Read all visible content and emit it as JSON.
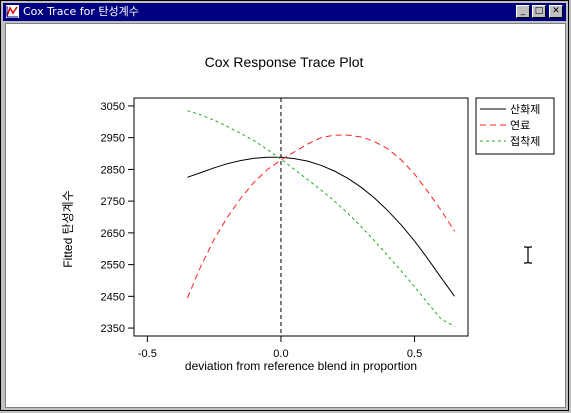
{
  "window": {
    "title": "Cox Trace for 탄성계수",
    "controls": {
      "minimize": "_",
      "maximize": "□",
      "close": "✕"
    },
    "icon": "app-icon"
  },
  "chart_data": {
    "type": "line",
    "title": "Cox Response Trace Plot",
    "xlabel": "deviation from reference blend in proportion",
    "ylabel": "Fitted 탄성계수",
    "xlim": [
      -0.55,
      0.7
    ],
    "ylim": [
      2325,
      3075
    ],
    "xticks": [
      "-0.5",
      "0.0",
      "0.5"
    ],
    "xtick_values": [
      -0.5,
      0.0,
      0.5
    ],
    "yticks": [
      "2350",
      "2450",
      "2550",
      "2650",
      "2750",
      "2850",
      "2950",
      "3050"
    ],
    "ytick_values": [
      2350,
      2450,
      2550,
      2650,
      2750,
      2850,
      2950,
      3050
    ],
    "reference_line_x": 0.0,
    "grid": false,
    "legend_position": "right",
    "series": [
      {
        "name": "산화제",
        "color": "#000000",
        "dash": "solid",
        "x": [
          -0.35,
          -0.3,
          -0.25,
          -0.2,
          -0.15,
          -0.1,
          -0.05,
          0.0,
          0.05,
          0.1,
          0.15,
          0.2,
          0.25,
          0.3,
          0.35,
          0.4,
          0.45,
          0.5,
          0.55,
          0.6,
          0.65
        ],
        "y": [
          2825,
          2840,
          2855,
          2868,
          2878,
          2885,
          2888,
          2888,
          2884,
          2876,
          2863,
          2845,
          2822,
          2794,
          2760,
          2720,
          2675,
          2624,
          2568,
          2508,
          2450
        ]
      },
      {
        "name": "연료",
        "color": "#ff2020",
        "dash": "long",
        "x": [
          -0.35,
          -0.3,
          -0.25,
          -0.2,
          -0.15,
          -0.1,
          -0.05,
          0.0,
          0.05,
          0.1,
          0.15,
          0.2,
          0.25,
          0.3,
          0.35,
          0.4,
          0.45,
          0.5,
          0.55,
          0.6,
          0.65
        ],
        "y": [
          2445,
          2545,
          2630,
          2700,
          2760,
          2810,
          2850,
          2880,
          2905,
          2930,
          2950,
          2958,
          2958,
          2952,
          2938,
          2915,
          2880,
          2835,
          2780,
          2720,
          2655
        ]
      },
      {
        "name": "접착제",
        "color": "#22aa22",
        "dash": "short",
        "x": [
          -0.35,
          -0.3,
          -0.25,
          -0.2,
          -0.15,
          -0.1,
          -0.05,
          0.0,
          0.05,
          0.1,
          0.15,
          0.2,
          0.25,
          0.3,
          0.35,
          0.4,
          0.45,
          0.5,
          0.55,
          0.6,
          0.65
        ],
        "y": [
          3035,
          3022,
          3005,
          2985,
          2963,
          2940,
          2912,
          2882,
          2850,
          2818,
          2785,
          2750,
          2712,
          2670,
          2625,
          2578,
          2530,
          2480,
          2428,
          2378,
          2355
        ]
      }
    ]
  }
}
